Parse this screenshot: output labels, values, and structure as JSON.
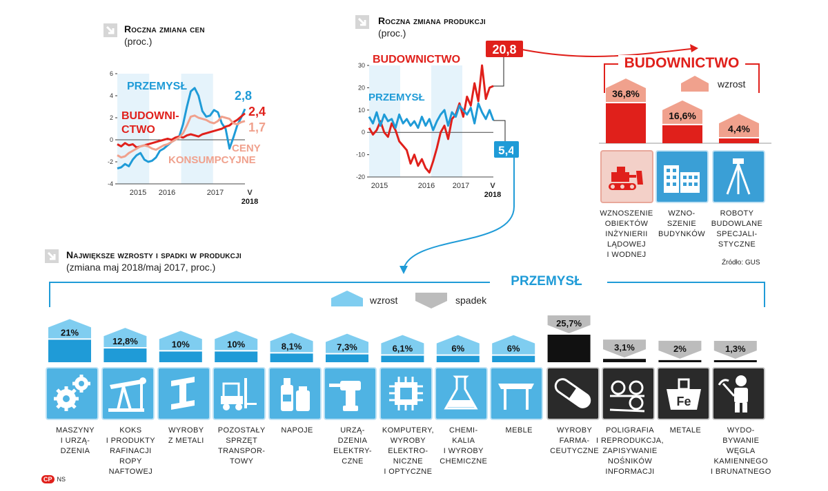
{
  "chart_data": [
    {
      "type": "line",
      "title": "Roczna zmiana cen",
      "subtitle": "(proc.)",
      "x_ticks": [
        "2015",
        "2016",
        "2017",
        "V"
      ],
      "x_sub_tick": "2018",
      "y_ticks": [
        6,
        4,
        2,
        0,
        -2,
        -4
      ],
      "ylim": [
        -4,
        6
      ],
      "series": [
        {
          "name": "PRZEMYSŁ",
          "color": "#1f9bd7",
          "end_label": "2,8",
          "values": [
            -2.6,
            -2.5,
            -2.2,
            -2.4,
            -1.8,
            -1.4,
            -1.2,
            -1.8,
            -2.0,
            -1.9,
            -1.6,
            -1.0,
            -0.8,
            -0.5,
            -0.2,
            0.0,
            0.3,
            1.4,
            3.0,
            4.4,
            4.7,
            4.0,
            2.6,
            2.1,
            2.2,
            2.7,
            2.5,
            1.5,
            1.0,
            -0.8,
            0.2,
            1.3,
            2.0,
            2.8
          ]
        },
        {
          "name": "BUDOWNICTWO",
          "color": "#e0201b",
          "end_label": "2,4",
          "values": [
            -0.4,
            -0.6,
            -0.3,
            -0.5,
            -0.4,
            -0.7,
            -0.6,
            -0.5,
            -0.4,
            -0.3,
            -0.2,
            -0.1,
            0.0,
            0.1,
            0.0,
            0.2,
            0.3,
            0.2,
            0.4,
            0.5,
            0.4,
            0.3,
            0.5,
            0.6,
            0.7,
            0.8,
            0.9,
            1.0,
            1.2,
            1.3,
            1.6,
            1.8,
            2.1,
            2.4
          ]
        },
        {
          "name": "CENY KONSUMPCYJNE",
          "color": "#f0a18d",
          "end_label": "1,7",
          "values": [
            -1.4,
            -1.6,
            -1.5,
            -1.2,
            -1.0,
            -0.8,
            -0.6,
            -0.5,
            -0.6,
            -0.8,
            -0.9,
            -0.7,
            -0.5,
            -0.4,
            -0.2,
            0.0,
            0.2,
            0.6,
            1.3,
            2.1,
            2.2,
            2.0,
            1.9,
            1.8,
            1.6,
            1.5,
            1.7,
            2.1,
            2.0,
            1.9,
            1.5,
            1.4,
            1.6,
            1.7
          ]
        }
      ]
    },
    {
      "type": "line",
      "title": "Roczna zmiana produkcji",
      "subtitle": "(proc.)",
      "x_ticks": [
        "2015",
        "2016",
        "2017",
        "V"
      ],
      "x_sub_tick": "2018",
      "y_ticks": [
        30,
        20,
        10,
        0,
        -10,
        -20
      ],
      "ylim": [
        -20,
        30
      ],
      "series": [
        {
          "name": "BUDOWNICTWO",
          "color": "#e0201b",
          "end_label": "20,8",
          "values": [
            2,
            -1,
            1,
            5,
            0,
            -2,
            4,
            1,
            -4,
            -6,
            -8,
            -14,
            -10,
            -15,
            -12,
            -16,
            -18,
            -13,
            -7,
            0,
            3,
            -3,
            6,
            8,
            13,
            7,
            16,
            12,
            22,
            14,
            30,
            15,
            20,
            20.8
          ]
        },
        {
          "name": "PRZEMYSŁ",
          "color": "#1f9bd7",
          "end_label": "5,4",
          "values": [
            7,
            4,
            9,
            3,
            8,
            5,
            6,
            2,
            8,
            4,
            6,
            3,
            5,
            2,
            7,
            3,
            6,
            1,
            5,
            8,
            10,
            3,
            9,
            7,
            12,
            10,
            8,
            11,
            4,
            13,
            9,
            6,
            10,
            5.4
          ]
        }
      ]
    },
    {
      "type": "bar",
      "title": "BUDOWNICTWO",
      "legend": "wzrost",
      "categories": [
        "WZNOSZENIE OBIEKTÓW INŻYNIERII LĄDOWEJ I WODNEJ",
        "WZNOSZENIE BUDYNKÓW",
        "ROBOTY BUDOWLANE SPECJALISTYCZNE"
      ],
      "category_lines": [
        [
          "WZNOSZENIE",
          "OBIEKTÓW",
          "INŻYNIERII",
          "LĄDOWEJ",
          "I WODNEJ"
        ],
        [
          "WZNO-",
          "SZENIE",
          "BUDYNKÓW"
        ],
        [
          "ROBOTY",
          "BUDOWLANE",
          "SPECJALI-",
          "STYCZNE"
        ]
      ],
      "values": [
        36.8,
        16.6,
        4.4
      ],
      "value_labels": [
        "36,8%",
        "16,6%",
        "4,4%"
      ],
      "source": "Źródło: GUS"
    },
    {
      "type": "bar",
      "title": "Największe wzrosty i spadki w produkcji",
      "subtitle": "(zmiana maj 2018/maj 2017, proc.)",
      "group_label": "PRZEMYSŁ",
      "legend": [
        "wzrost",
        "spadek"
      ],
      "categories": [
        "MASZYNY I URZĄDZENIA",
        "KOKS I PRODUKTY RAFINACJI ROPY NAFTOWEJ",
        "WYROBY Z METALI",
        "POZOSTAŁY SPRZĘT TRANSPORTOWY",
        "NAPOJE",
        "URZĄDZENIA ELEKTRYCZNE",
        "KOMPUTERY, WYROBY ELEKTRONICZNE I OPTYCZNE",
        "CHEMIKALIA I WYROBY CHEMICZNE",
        "MEBLE",
        "WYROBY FARMACEUTYCZNE",
        "POLIGRAFIA I REPRODUKCJA, ZAPISYWANIE NOŚNIKÓW INFORMACJI",
        "METALE",
        "WYDOBYWANIE WĘGLA KAMIENNEGO I BRUNATNEGO"
      ],
      "category_lines": [
        [
          "MASZYNY",
          "I URZĄ-",
          "DZENIA"
        ],
        [
          "KOKS",
          "I PRODUKTY",
          "RAFINACJI",
          "ROPY",
          "NAFTOWEJ"
        ],
        [
          "WYROBY",
          "Z METALI"
        ],
        [
          "POZOSTAŁY",
          "SPRZĘT",
          "TRANSPOR-",
          "TOWY"
        ],
        [
          "NAPOJE"
        ],
        [
          "URZĄ-",
          "DZENIA",
          "ELEKTRY-",
          "CZNE"
        ],
        [
          "KOMPUTERY,",
          "WYROBY",
          "ELEKTRO-",
          "NICZNE",
          "I OPTYCZNE"
        ],
        [
          "CHEMI-",
          "KALIA",
          "I WYROBY",
          "CHEMICZNE"
        ],
        [
          "MEBLE"
        ],
        [
          "WYROBY",
          "FARMA-",
          "CEUTYCZNE"
        ],
        [
          "POLIGRAFIA",
          "I REPRODUKCJA,",
          "ZAPISYWANIE",
          "NOŚNIKÓW",
          "INFORMACJI"
        ],
        [
          "METALE"
        ],
        [
          "WYDO-",
          "BYWANIE",
          "WĘGLA",
          "KAMIENNEGO",
          "I BRUNATNEGO"
        ]
      ],
      "values": [
        21,
        12.8,
        10,
        10,
        8.1,
        7.3,
        6.1,
        6,
        6,
        -25.7,
        -3.1,
        -2,
        -1.3
      ],
      "value_labels": [
        "21%",
        "12,8%",
        "10%",
        "10%",
        "8,1%",
        "7,3%",
        "6,1%",
        "6%",
        "6%",
        "25,7%",
        "3,1%",
        "2%",
        "1,3%"
      ],
      "icons": [
        "gears-icon",
        "oil-pump-icon",
        "steel-beam-icon",
        "forklift-icon",
        "bottles-icon",
        "drill-icon",
        "chip-icon",
        "flask-icon",
        "table-icon",
        "pill-icon",
        "printer-icon",
        "metal-fe-icon",
        "miner-icon"
      ]
    }
  ],
  "footer": {
    "logo": "CP",
    "author": "NS"
  },
  "colors": {
    "blue": "#1f9bd7",
    "red": "#e0201b",
    "salmon": "#f0a18d",
    "light_blue": "#7fcdf0",
    "dark": "#1a1a1a"
  }
}
